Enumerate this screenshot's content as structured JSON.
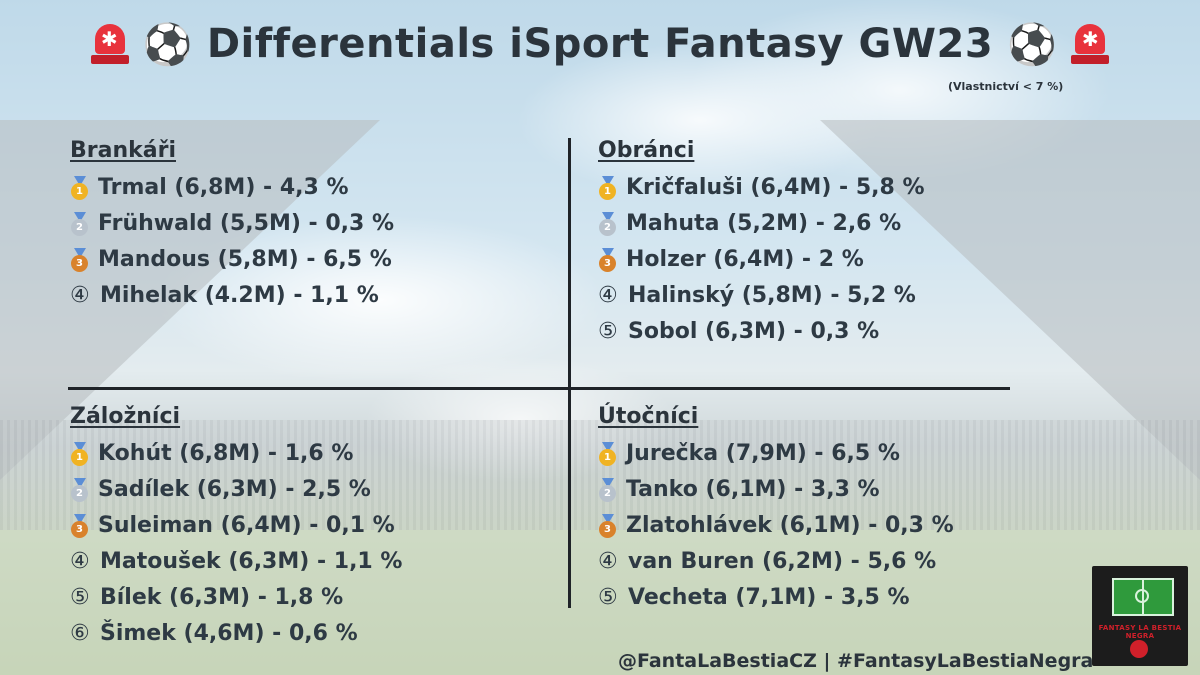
{
  "header": {
    "title": "Differentials iSport Fantasy GW23",
    "subtitle": "(Vlastnictví < 7 %)",
    "siren_icon": "🚨",
    "ball_icon": "⚽"
  },
  "sections": {
    "goalkeepers": {
      "title": "Brankáři",
      "items": [
        {
          "rank": "gold",
          "text": "Trmal (6,8M) - 4,3 %"
        },
        {
          "rank": "silver",
          "text": "Frühwald (5,5M) - 0,3 %"
        },
        {
          "rank": "bronze",
          "text": "Mandous (5,8M) - 6,5 %"
        },
        {
          "rank": "④",
          "text": "Mihelak (4.2M) - 1,1 %"
        }
      ]
    },
    "defenders": {
      "title": "Obránci",
      "items": [
        {
          "rank": "gold",
          "text": "Kričfaluši (6,4M) - 5,8 %"
        },
        {
          "rank": "silver",
          "text": "Mahuta (5,2M) - 2,6 %"
        },
        {
          "rank": "bronze",
          "text": "Holzer (6,4M) - 2 %"
        },
        {
          "rank": "④",
          "text": "Halinský (5,8M) - 5,2 %"
        },
        {
          "rank": "⑤",
          "text": "Sobol (6,3M) - 0,3 %"
        }
      ]
    },
    "midfielders": {
      "title": "Záložníci",
      "items": [
        {
          "rank": "gold",
          "text": "Kohút (6,8M) - 1,6 %"
        },
        {
          "rank": "silver",
          "text": "Sadílek (6,3M) - 2,5 %"
        },
        {
          "rank": "bronze",
          "text": "Suleiman (6,4M) - 0,1 %"
        },
        {
          "rank": "④",
          "text": "Matoušek (6,3M) - 1,1 %"
        },
        {
          "rank": "⑤",
          "text": "Bílek (6,3M) - 1,8 %"
        },
        {
          "rank": "⑥",
          "text": "Šimek (4,6M) - 0,6 %"
        }
      ]
    },
    "forwards": {
      "title": "Útočníci",
      "items": [
        {
          "rank": "gold",
          "text": "Jurečka (7,9M) - 6,5 %"
        },
        {
          "rank": "silver",
          "text": "Tanko (6,1M) - 3,3 %"
        },
        {
          "rank": "bronze",
          "text": "Zlatohlávek (6,1M) - 0,3 %"
        },
        {
          "rank": "④",
          "text": "van Buren (6,2M) - 5,6 %"
        },
        {
          "rank": "⑤",
          "text": "Vecheta (7,1M) - 3,5 %"
        }
      ]
    }
  },
  "footer": {
    "handles": "@FantaLaBestiaCZ | #FantasyLaBestiaNegra",
    "logo_text": "FANTASY LA BESTIA NEGRA"
  },
  "colors": {
    "text": "#2e3a44",
    "gold": "#f0b323",
    "silver": "#b8c2cc",
    "bronze": "#d9822b",
    "siren": "#e8323c"
  }
}
